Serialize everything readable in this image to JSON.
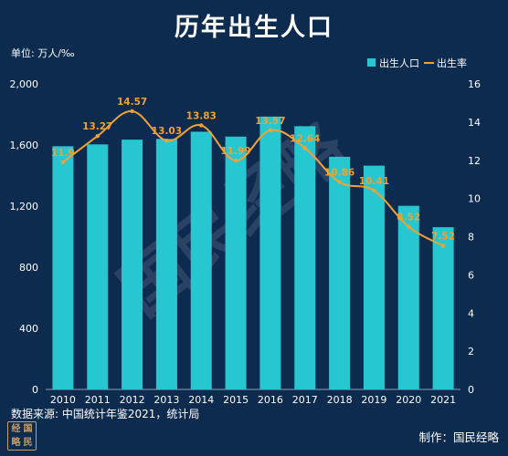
{
  "header": {
    "title": "历年出生人口",
    "unit": "单位: 万人/‰"
  },
  "footer": {
    "source": "数据来源: 中国统计年鉴2021，统计局",
    "maker": "制作：国民经略"
  },
  "watermark": "国民经略",
  "logo_chars": [
    "经",
    "国",
    "略",
    "民"
  ],
  "colors": {
    "background": "#0d2a4f",
    "bar": "#27c7d1",
    "line": "#f0a233",
    "label": "#f0a233",
    "axis_text": "#ffffff"
  },
  "chart_data": {
    "type": "bar",
    "title": "历年出生人口",
    "categories": [
      "2010",
      "2011",
      "2012",
      "2013",
      "2014",
      "2015",
      "2016",
      "2017",
      "2018",
      "2019",
      "2020",
      "2021"
    ],
    "series": [
      {
        "name": "出生人口",
        "type": "bar",
        "axis": "left",
        "values": [
          1592,
          1604,
          1635,
          1640,
          1687,
          1655,
          1786,
          1723,
          1523,
          1465,
          1202,
          1062
        ]
      },
      {
        "name": "出生率",
        "type": "line",
        "axis": "right",
        "values": [
          11.9,
          13.27,
          14.57,
          13.03,
          13.83,
          11.99,
          13.57,
          12.64,
          10.86,
          10.41,
          8.52,
          7.52
        ],
        "labels": [
          "11.9",
          "13.27",
          "14.57",
          "13.03",
          "13.83",
          "11.99",
          "13.57",
          "12.64",
          "10.86",
          "10.41",
          "8.52",
          "7.52"
        ]
      }
    ],
    "left_ticks": [
      "0",
      "400",
      "800",
      "1,200",
      "1,600",
      "2,000"
    ],
    "right_ticks": [
      "0",
      "2",
      "4",
      "6",
      "8",
      "10",
      "12",
      "14",
      "16"
    ],
    "ylim_left": [
      0,
      2000
    ],
    "ylim_right": [
      0,
      16
    ],
    "grid": false,
    "legend_position": "top-right"
  }
}
